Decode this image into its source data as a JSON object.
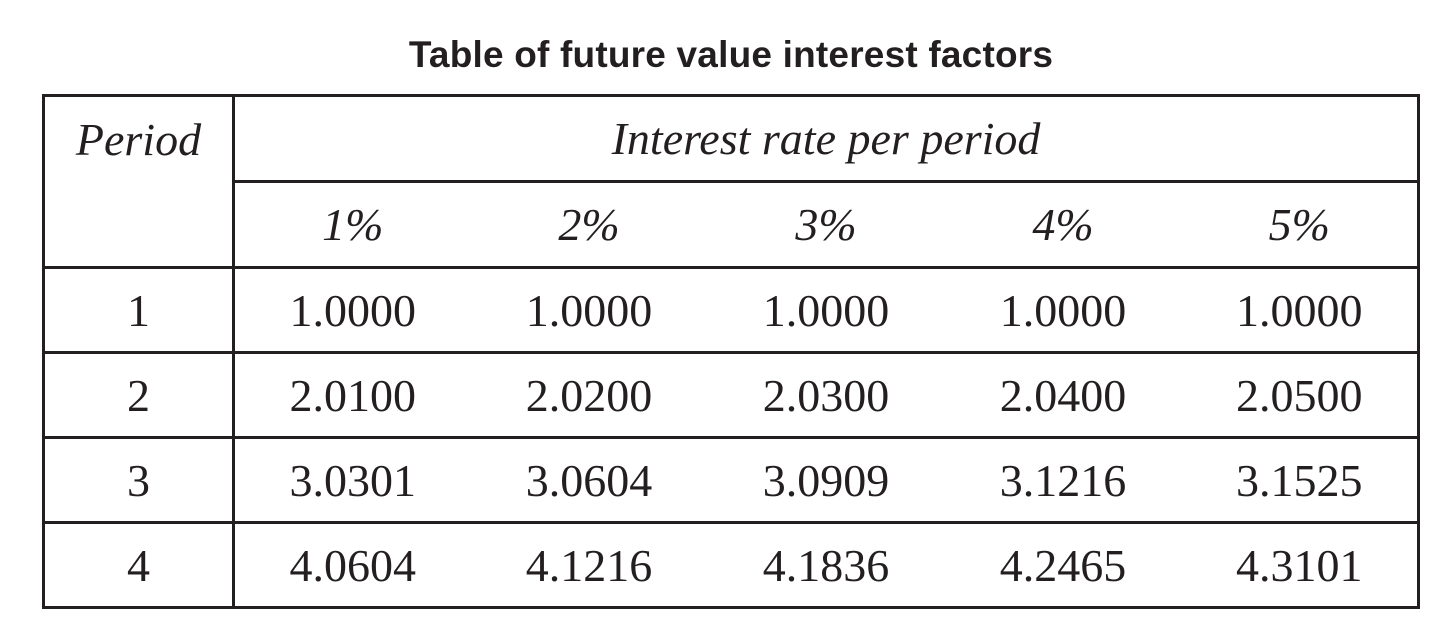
{
  "title": "Table of future value interest factors",
  "table": {
    "period_header": "Period",
    "rate_header": "Interest rate per period",
    "rates": [
      "1%",
      "2%",
      "3%",
      "4%",
      "5%"
    ],
    "rows": [
      {
        "period": "1",
        "values": [
          "1.0000",
          "1.0000",
          "1.0000",
          "1.0000",
          "1.0000"
        ]
      },
      {
        "period": "2",
        "values": [
          "2.0100",
          "2.0200",
          "2.0300",
          "2.0400",
          "2.0500"
        ]
      },
      {
        "period": "3",
        "values": [
          "3.0301",
          "3.0604",
          "3.0909",
          "3.1216",
          "3.1525"
        ]
      },
      {
        "period": "4",
        "values": [
          "4.0604",
          "4.1216",
          "4.1836",
          "4.2465",
          "4.3101"
        ]
      }
    ]
  }
}
